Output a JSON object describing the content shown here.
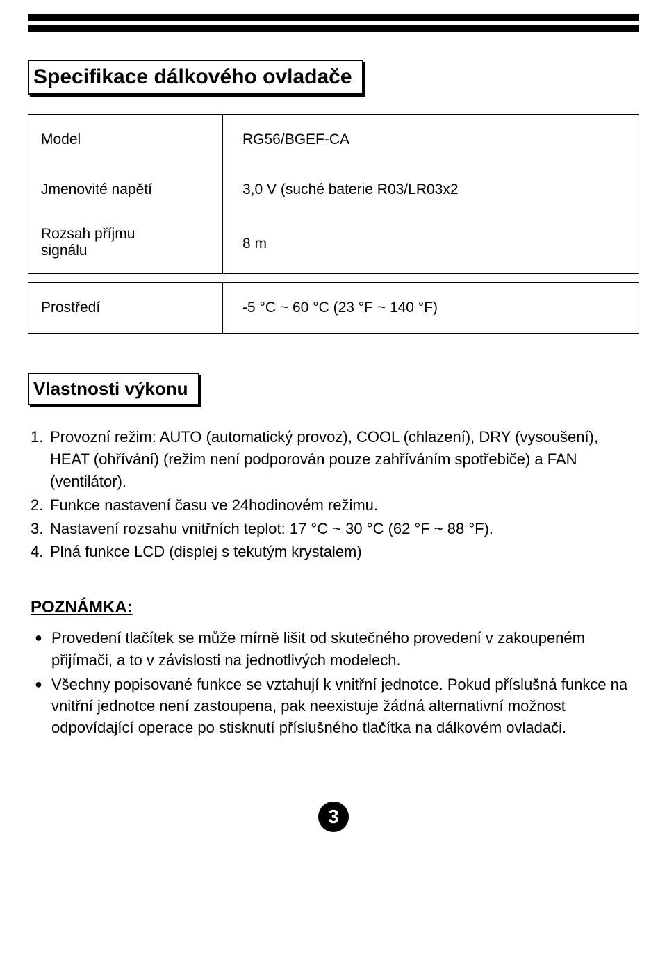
{
  "headings": {
    "spec": "Specifikace dálkového ovladače",
    "features": "Vlastnosti výkonu",
    "note": "POZNÁMKA:"
  },
  "spec_rows": [
    {
      "label": "Model",
      "value": "RG56/BGEF-CA",
      "multi": false
    },
    {
      "label": "Jmenovité napětí",
      "value": "3,0 V (suché baterie R03/LR03x2",
      "multi": false
    },
    {
      "label": "Rozsah příjmu\nsignálu",
      "value": "8 m",
      "multi": true
    }
  ],
  "spec_rows2": [
    {
      "label": "Prostředí",
      "value": "-5 °C ~ 60 °C (23 °F ~ 140 °F)",
      "multi": false
    }
  ],
  "features": [
    {
      "num": "1.",
      "text": "Provozní režim: AUTO (automatický provoz), COOL (chlazení), DRY (vysoušení), HEAT (ohřívání) (režim není podporován pouze zahříváním spotřebiče) a FAN (ventilátor)."
    },
    {
      "num": "2.",
      "text": "Funkce nastavení času ve 24hodinovém režimu."
    },
    {
      "num": "3.",
      "text": "Nastavení rozsahu vnitřních teplot: 17 °C ~ 30 °C (62 °F ~ 88 °F)."
    },
    {
      "num": "4.",
      "text": "Plná funkce LCD (displej s tekutým krystalem)"
    }
  ],
  "notes": [
    "Provedení tlačítek se může mírně lišit od skutečného provedení v zakoupeném přijímači, a to v závislosti na jednotlivých modelech.",
    "Všechny popisované funkce se vztahují k vnitřní jednotce. Pokud příslušná funkce na vnitřní jednotce není zastoupena, pak neexistuje žádná alternativní možnost odpovídající operace po stisknutí příslušného tlačítka na dálkovém ovladači."
  ],
  "page_number": "3",
  "colors": {
    "text": "#000000",
    "background": "#ffffff",
    "bar": "#000000"
  }
}
